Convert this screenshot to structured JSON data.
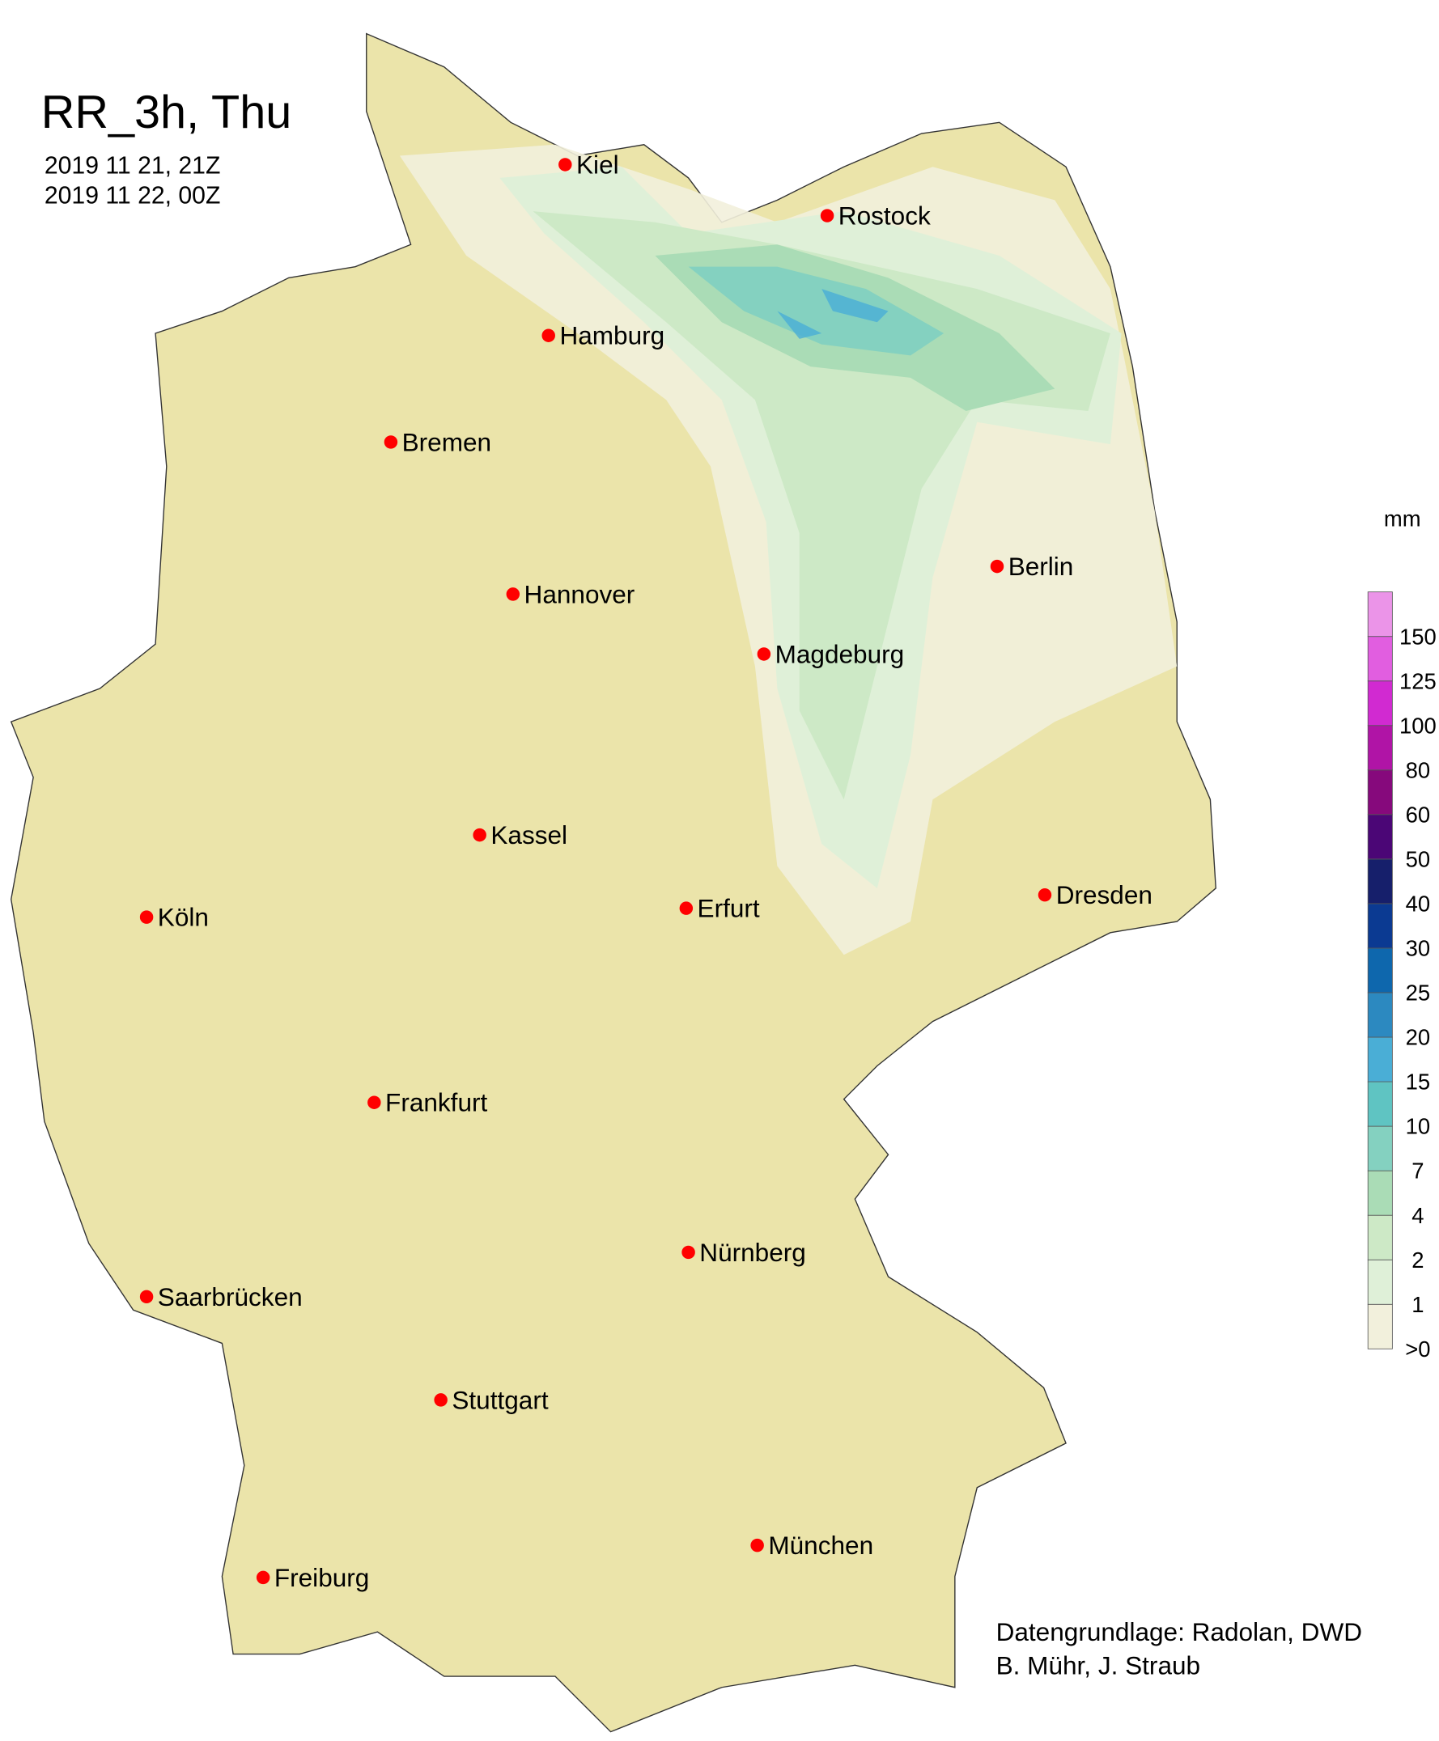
{
  "title": "RR_3h, Thu",
  "period_start": "2019 11 21, 21Z",
  "period_end": "2019 11 22, 00Z",
  "credits": [
    "Datengrundlage: Radolan, DWD",
    "B. Mühr, J. Straub"
  ],
  "land_color": "#ebe4aa",
  "city_marker_color": "#ff0000",
  "cities": [
    {
      "name": "Kiel"
    },
    {
      "name": "Rostock"
    },
    {
      "name": "Hamburg"
    },
    {
      "name": "Bremen"
    },
    {
      "name": "Berlin"
    },
    {
      "name": "Hannover"
    },
    {
      "name": "Magdeburg"
    },
    {
      "name": "Kassel"
    },
    {
      "name": "Dresden"
    },
    {
      "name": "Köln"
    },
    {
      "name": "Erfurt"
    },
    {
      "name": "Frankfurt"
    },
    {
      "name": "Nürnberg"
    },
    {
      "name": "Saarbrücken"
    },
    {
      "name": "Stuttgart"
    },
    {
      "name": "München"
    },
    {
      "name": "Freiburg"
    }
  ],
  "legend": {
    "unit": "mm",
    "labels": [
      ">0",
      "1",
      "2",
      "4",
      "7",
      "10",
      "15",
      "20",
      "25",
      "30",
      "40",
      "50",
      "60",
      "80",
      "100",
      "125",
      "150"
    ],
    "colors": [
      "#f2f0dc",
      "#dff0d8",
      "#cde9c6",
      "#aadcb6",
      "#84d1c0",
      "#5fc4c2",
      "#4aaed6",
      "#2c89c0",
      "#0e67ad",
      "#0b3a92",
      "#161f6b",
      "#4b0676",
      "#86097c",
      "#b014a6",
      "#d12ad1",
      "#e15ee0",
      "#eb94e8"
    ]
  }
}
